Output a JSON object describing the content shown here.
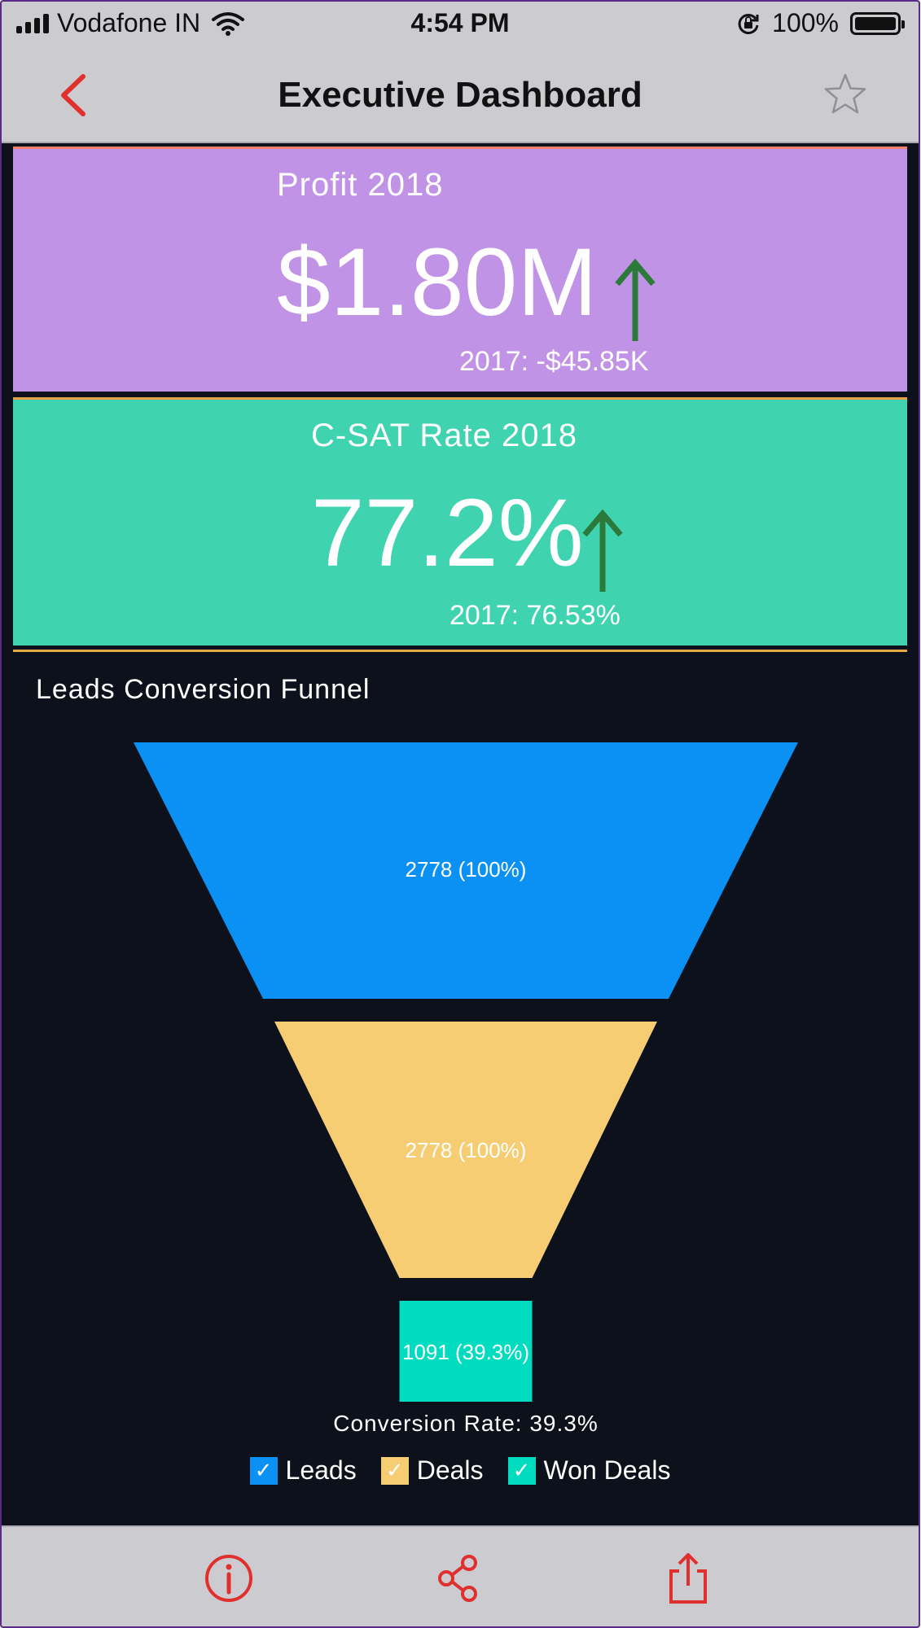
{
  "status_bar": {
    "carrier": "Vodafone IN",
    "time": "4:54 PM",
    "battery": "100%"
  },
  "nav": {
    "title": "Executive Dashboard"
  },
  "kpis": [
    {
      "title": "Profit 2018",
      "value": "$1.80M",
      "previous": "2017: -$45.85K",
      "trend": "up",
      "background": "#c193e7"
    },
    {
      "title": "C-SAT Rate 2018",
      "value": "77.2%",
      "previous": "2017: 76.53%",
      "trend": "up",
      "background": "#3fd3b0"
    }
  ],
  "colors": {
    "accent": "#e0302e",
    "trend_up": "#2c7a3a",
    "leads": "#0a91f3",
    "deals": "#f6cd73",
    "won_deals": "#00dcbf"
  },
  "chart_data": {
    "type": "funnel",
    "title": "Leads Conversion Funnel",
    "categories": [
      "Leads",
      "Deals",
      "Won Deals"
    ],
    "values": [
      2778,
      2778,
      1091
    ],
    "labels": [
      "2778 (100%)",
      "2778 (100%)",
      "1091 (39.3%)"
    ],
    "footer": "Conversion Rate: 39.3%",
    "legend": [
      "Leads",
      "Deals",
      "Won Deals"
    ],
    "legend_placement": "bottom"
  },
  "toolbar": {
    "icons": [
      "info-icon",
      "share-network-icon",
      "export-icon"
    ]
  }
}
